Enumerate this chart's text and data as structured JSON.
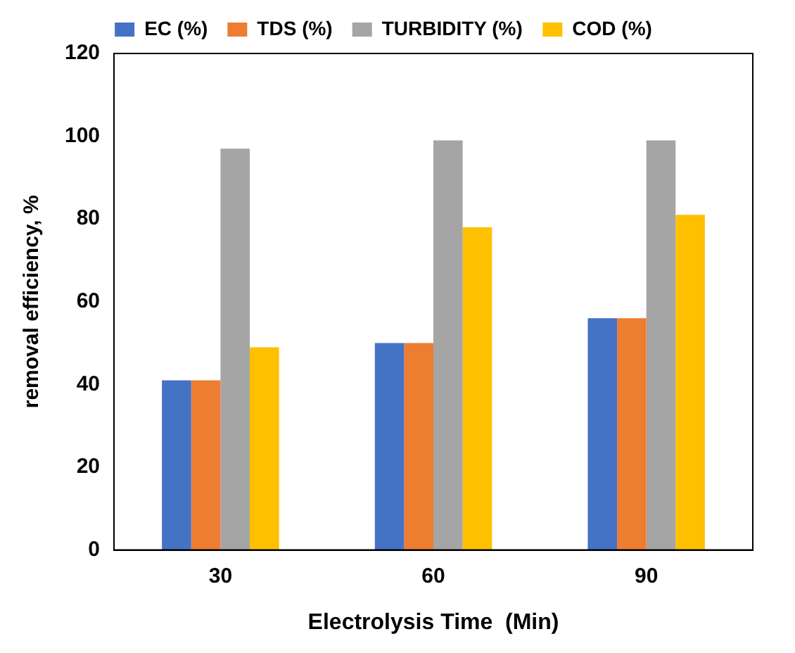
{
  "chart_data": {
    "type": "bar",
    "xlabel": "Electrolysis Time  (Min)",
    "ylabel": "removal efficiency, %",
    "categories": [
      "30",
      "60",
      "90"
    ],
    "series": [
      {
        "name": "EC (%)",
        "color": "#4472c4",
        "values": [
          41,
          50,
          56
        ]
      },
      {
        "name": "TDS (%)",
        "color": "#ed7d31",
        "values": [
          41,
          50,
          56
        ]
      },
      {
        "name": "TURBIDITY (%)",
        "color": "#a5a5a5",
        "values": [
          97,
          99,
          99
        ]
      },
      {
        "name": "COD (%)",
        "color": "#ffc000",
        "values": [
          49,
          78,
          81
        ]
      }
    ],
    "ylim": [
      0,
      120
    ],
    "yticks": [
      0,
      20,
      40,
      60,
      80,
      100,
      120
    ],
    "grid": false,
    "legend": "top"
  }
}
